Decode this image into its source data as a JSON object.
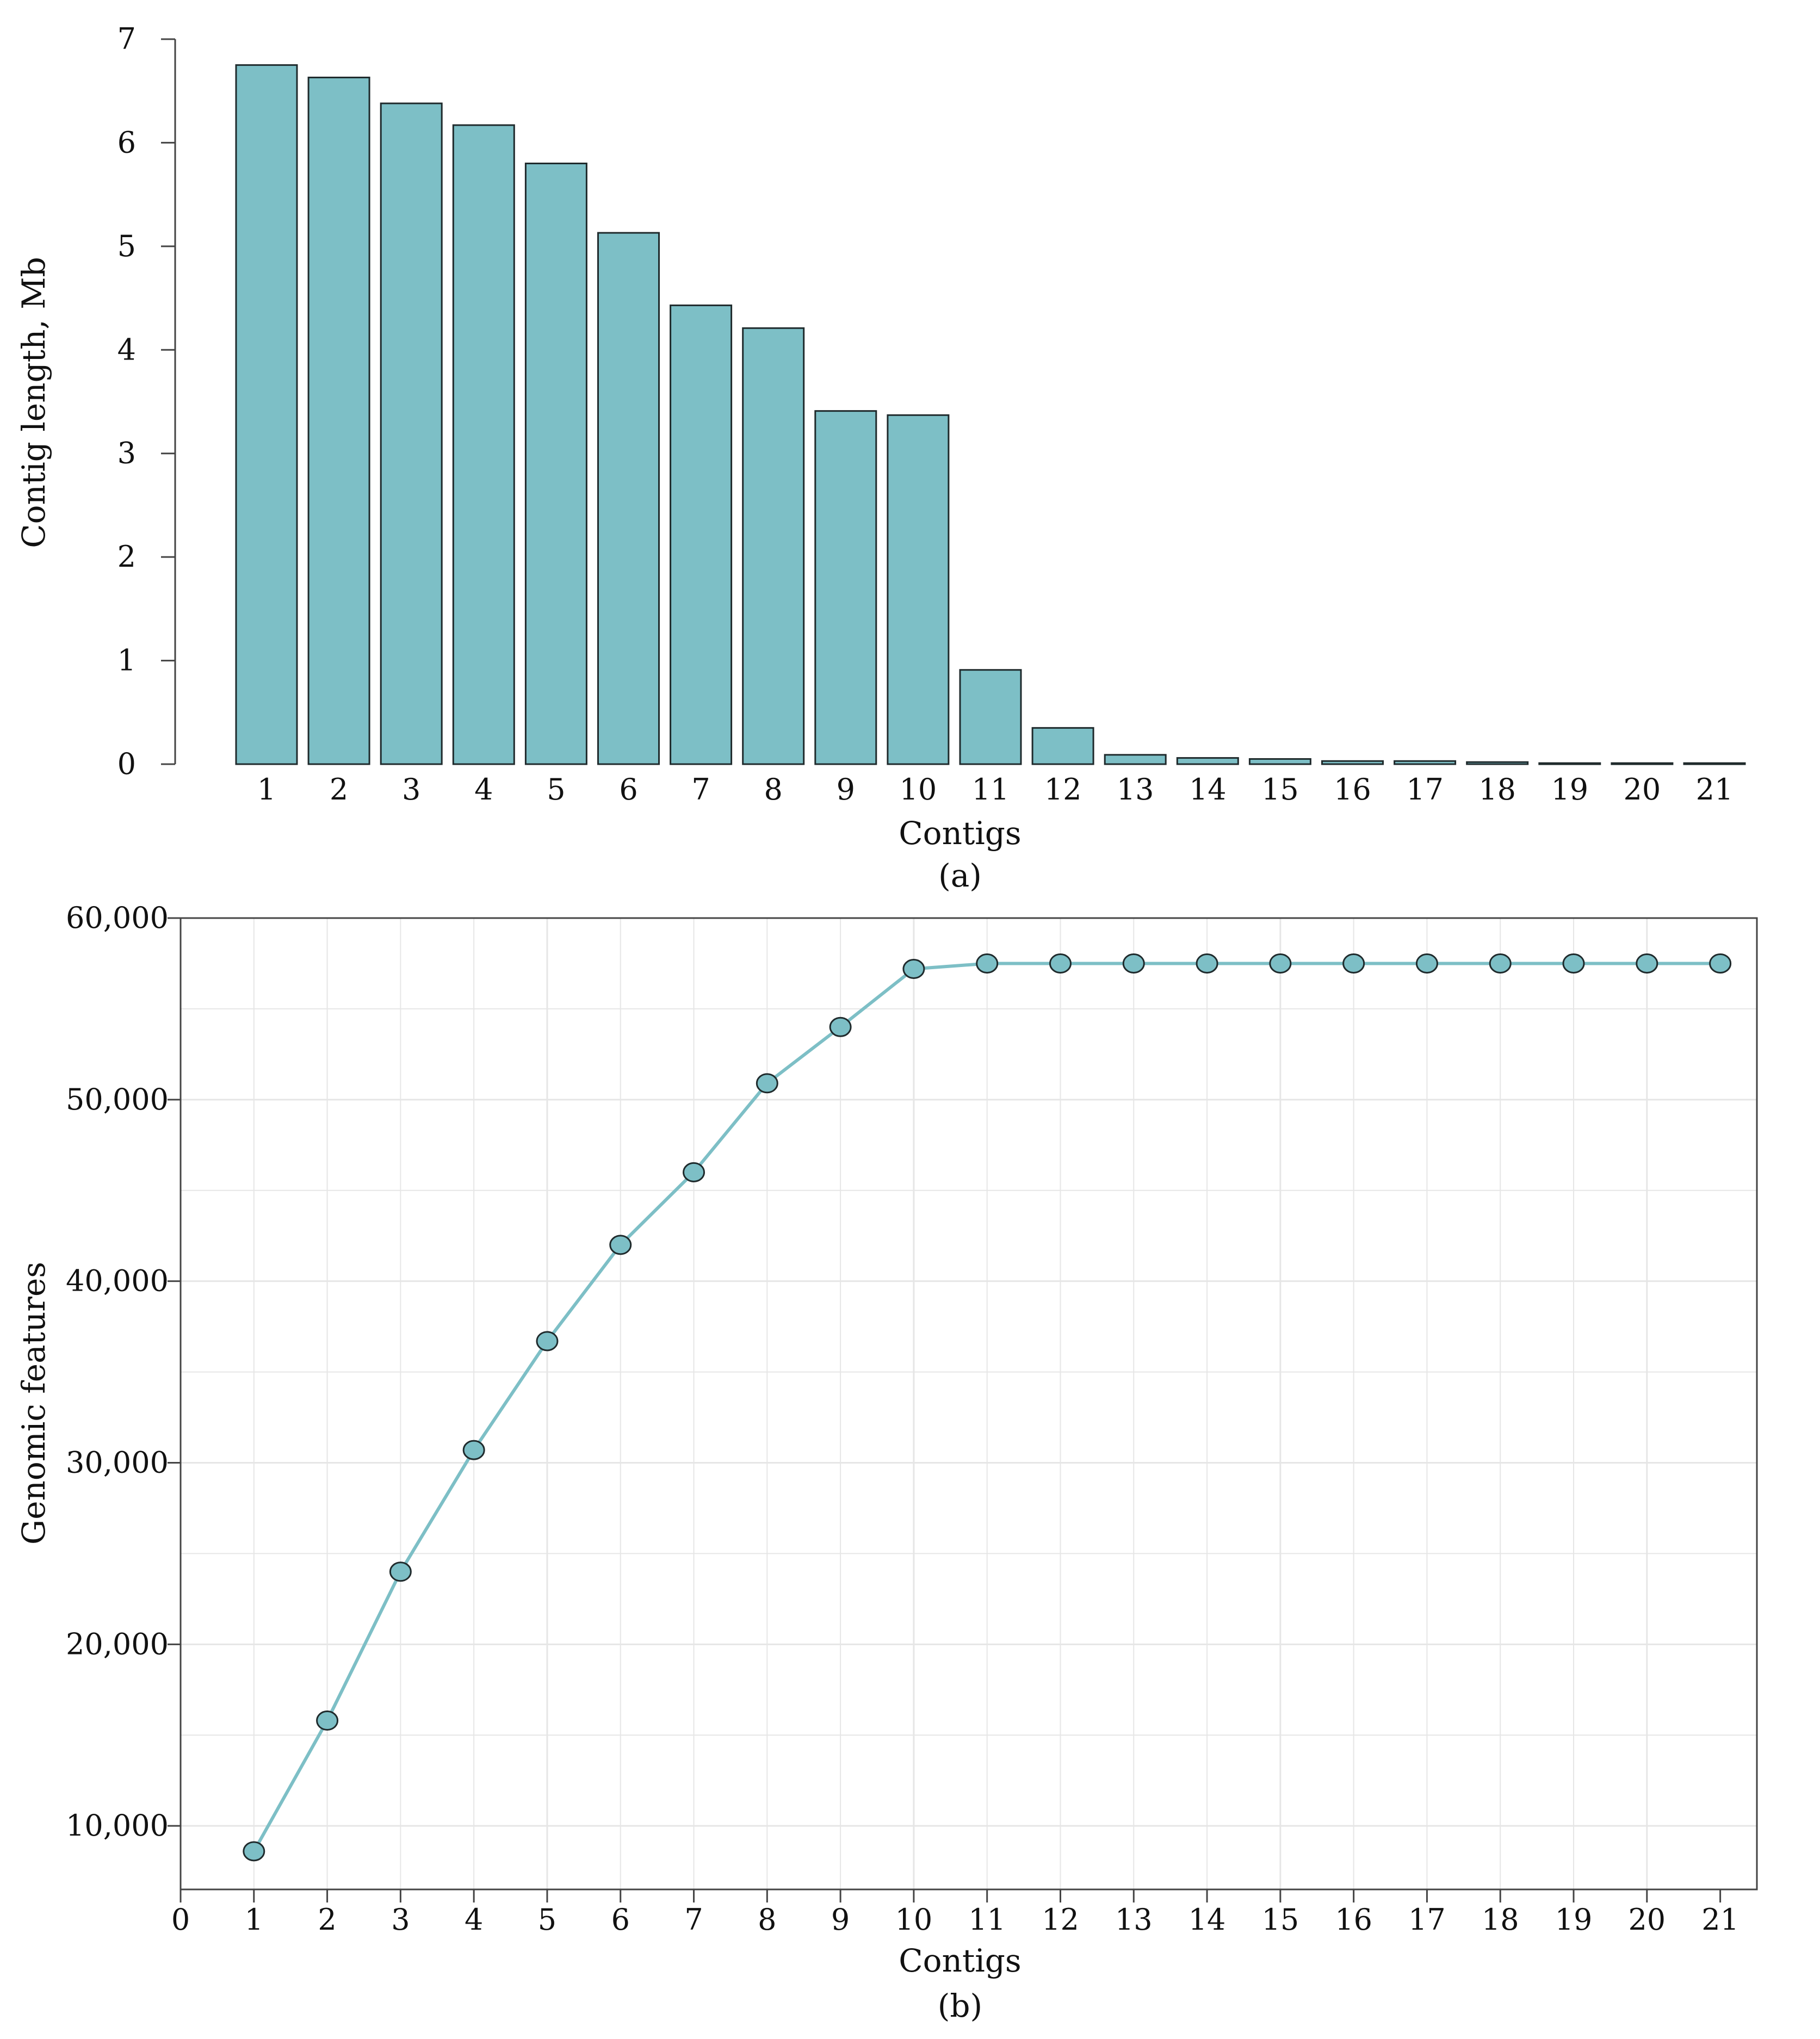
{
  "colors": {
    "fill": "#7dbfc6",
    "bar_stroke": "#1f2a2c",
    "line": "#7dbfc6",
    "marker_stroke": "#1f2a2c",
    "grid": "#e6e6e6",
    "axis": "#444444"
  },
  "chart_data": [
    {
      "type": "bar",
      "categories": [
        "1",
        "2",
        "3",
        "4",
        "5",
        "6",
        "7",
        "8",
        "9",
        "10",
        "11",
        "12",
        "13",
        "14",
        "15",
        "16",
        "17",
        "18",
        "19",
        "20",
        "21"
      ],
      "values": [
        6.75,
        6.63,
        6.38,
        6.17,
        5.8,
        5.13,
        4.43,
        4.21,
        3.41,
        3.37,
        0.91,
        0.35,
        0.09,
        0.06,
        0.05,
        0.03,
        0.03,
        0.02,
        0.01,
        0.01,
        0.01
      ],
      "yticks": [
        "0",
        "1",
        "2",
        "3",
        "4",
        "5",
        "6",
        "7"
      ],
      "ylim": [
        0,
        7
      ],
      "xlabel": "Contigs",
      "ylabel": "Contig length, Mb",
      "caption": "(a)",
      "grid": false
    },
    {
      "type": "line",
      "x": [
        1,
        2,
        3,
        4,
        5,
        6,
        7,
        8,
        9,
        10,
        11,
        12,
        13,
        14,
        15,
        16,
        17,
        18,
        19,
        20,
        21
      ],
      "values": [
        8600,
        15800,
        24000,
        30700,
        36700,
        42000,
        46000,
        50900,
        54000,
        57200,
        57500,
        57500,
        57500,
        57500,
        57500,
        57500,
        57500,
        57500,
        57500,
        57500,
        57500
      ],
      "xticks": [
        "0",
        "1",
        "2",
        "3",
        "4",
        "5",
        "6",
        "7",
        "8",
        "9",
        "10",
        "11",
        "12",
        "13",
        "14",
        "15",
        "16",
        "17",
        "18",
        "19",
        "20",
        "21"
      ],
      "yticks": [
        "10,000",
        "20,000",
        "30,000",
        "40,000",
        "50,000",
        "60,000"
      ],
      "xlim": [
        0,
        21.5
      ],
      "ylim": [
        6500,
        60000
      ],
      "xlabel": "Contigs",
      "ylabel": "Genomic features",
      "caption": "(b)",
      "grid": true
    }
  ]
}
